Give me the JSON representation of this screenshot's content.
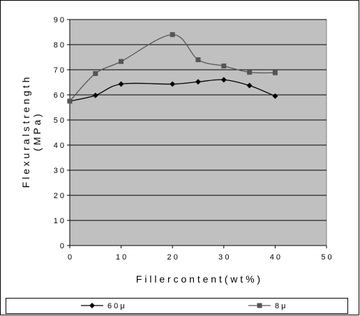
{
  "chart_data": {
    "type": "line",
    "title": "",
    "xlabel": "F i l l e r  c o n t e n t ( w t % )",
    "ylabel": [
      "F l e x u r a l  s t r e n g t h",
      "( M P a )"
    ],
    "xlim": [
      0,
      50
    ],
    "ylim": [
      0,
      90
    ],
    "x_ticks": [
      0,
      10,
      20,
      30,
      40,
      50
    ],
    "y_ticks": [
      0,
      10,
      20,
      30,
      40,
      50,
      60,
      70,
      80,
      90
    ],
    "x_tick_labels": [
      "0",
      "1 0",
      "2 0",
      "3 0",
      "4 0",
      "5 0"
    ],
    "y_tick_labels": [
      "0",
      "1 0",
      "2 0",
      "3 0",
      "4 0",
      "5 0",
      "6 0",
      "7 0",
      "8 0",
      "9 0"
    ],
    "grid": "horizontal",
    "legend_position": "bottom",
    "plot_background": "#c0c0c0",
    "series": [
      {
        "name": "6 0 μ",
        "marker": "diamond",
        "color": "#000000",
        "x": [
          0,
          5,
          10,
          20,
          25,
          30,
          35,
          40
        ],
        "values": [
          57.5,
          59.8,
          64.3,
          64.3,
          65.2,
          66.0,
          63.7,
          59.5
        ]
      },
      {
        "name": "8 μ",
        "marker": "square",
        "color": "#555555",
        "x": [
          0,
          5,
          10,
          20,
          25,
          30,
          35,
          40
        ],
        "values": [
          57.5,
          68.5,
          73.3,
          84.0,
          74.0,
          71.5,
          69.0,
          68.8
        ]
      }
    ]
  }
}
